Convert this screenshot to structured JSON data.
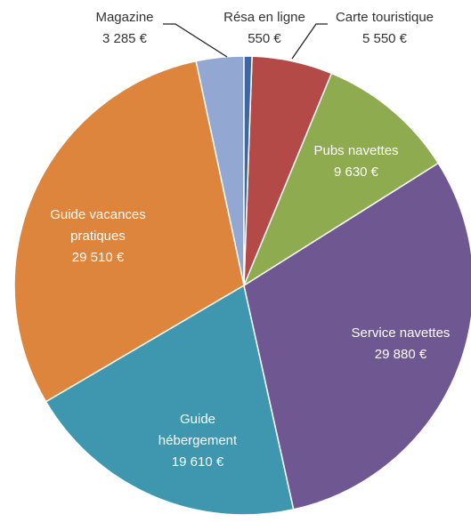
{
  "chart_data": {
    "type": "pie",
    "categories": [
      "Résa en ligne",
      "Carte touristique",
      "Pubs navettes",
      "Service navettes",
      "Guide hébergement",
      "Guide vacances pratiques",
      "Magazine"
    ],
    "values": [
      550,
      5550,
      9630,
      29880,
      19610,
      29510,
      3285
    ],
    "value_labels": [
      "550 €",
      "5 550 €",
      "9 630 €",
      "29 880 €",
      "19 610 €",
      "29 510 €",
      "3 285 €"
    ],
    "colors": [
      "#3a68a8",
      "#b44a48",
      "#8eab4f",
      "#6f5891",
      "#3e97ae",
      "#dd853c",
      "#92a8d2"
    ],
    "start_angle": 0,
    "direction": "clockwise"
  }
}
